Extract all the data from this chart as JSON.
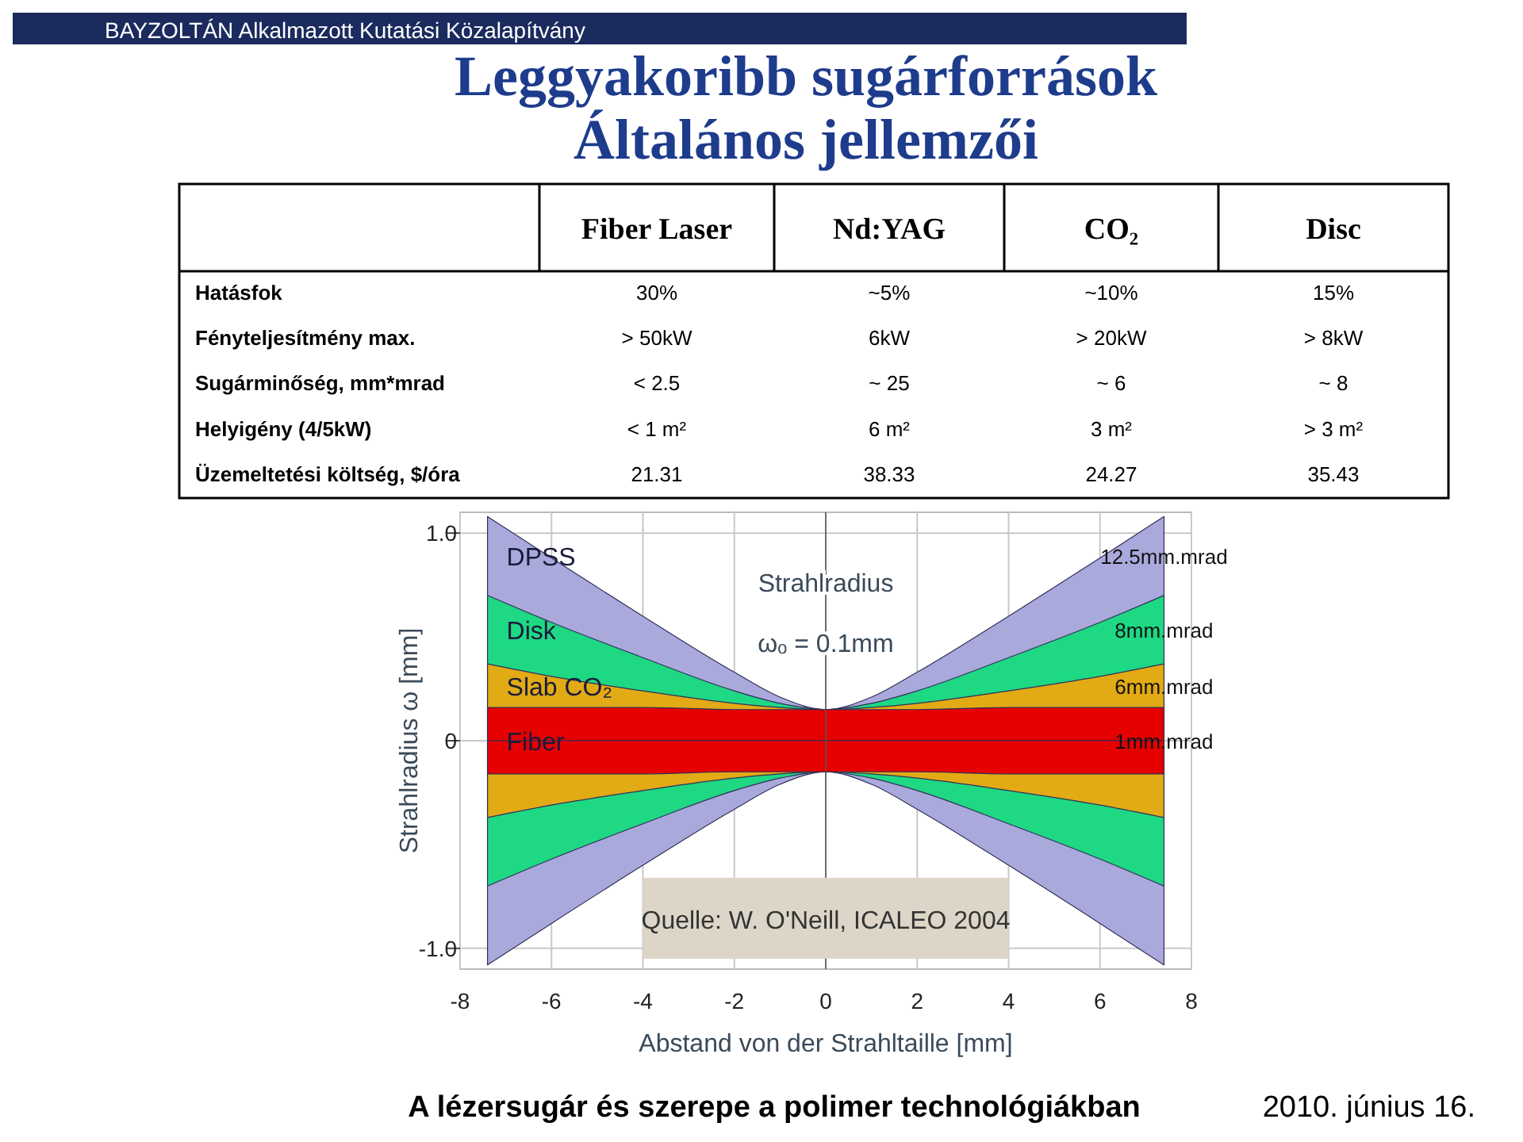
{
  "chart_data": [
    {
      "type": "other",
      "title": "Leggyakoribb sugárforrások\nÁltalános jellemzői",
      "categories": [
        "Fiber Laser",
        "Nd:YAG",
        "CO₂",
        "Disc"
      ],
      "y_categories": [
        "Hatásfok",
        "Fényteljesítmény max.",
        "Sugárminőség, mm*mrad",
        "Helyigény (4/5kW)",
        "Üzemeltetési költség, $/óra"
      ],
      "cell_labels": [
        [
          "30%",
          "~5%",
          "~10%",
          "15%"
        ],
        [
          "> 50kW",
          "6kW",
          "> 20kW",
          "> 8kW"
        ],
        [
          "< 2.5",
          "~ 25",
          "~ 6",
          "~ 8"
        ],
        [
          "< 1 m²",
          "6 m²",
          "3 m²",
          "> 3 m²"
        ],
        [
          "21.31",
          "38.33",
          "24.27",
          "35.43"
        ]
      ],
      "annotations": [
        "BAYZOLTÁN Alkalmazott Kutatási Közalapítvány",
        "A lézersugár és szerepe a polimer technológiákban",
        "2010. június 16."
      ]
    },
    {
      "type": "area",
      "xlabel": "Abstand von der Strahltaille [mm]",
      "ylabel": "Strahlradius ω [mm]",
      "x": [
        -7.4,
        -6,
        -4,
        -2,
        -1,
        0,
        1,
        2,
        4,
        6,
        7.4
      ],
      "xlim": [
        -8,
        8
      ],
      "xticks": [
        -8,
        -6,
        -4,
        -2,
        0,
        2,
        4,
        6,
        8
      ],
      "ylim": [
        -1.1,
        1.1
      ],
      "yticks": [
        {
          "value": -1,
          "label": "-1.0"
        },
        0,
        {
          "value": 1,
          "label": "1.0"
        }
      ],
      "grid": true,
      "series": [
        {
          "name": "DPSS",
          "color": "#a9a9dc",
          "values": [
            1.08,
            0.88,
            0.6,
            0.33,
            0.21,
            0.15,
            0.21,
            0.33,
            0.6,
            0.88,
            1.08
          ]
        },
        {
          "color": "#a9a9dc",
          "values": [
            -1.08,
            -0.88,
            -0.6,
            -0.33,
            -0.21,
            -0.15,
            -0.21,
            -0.33,
            -0.6,
            -0.88,
            -1.08
          ]
        },
        {
          "name": "Disk",
          "color": "#1ed884",
          "values": [
            0.7,
            0.57,
            0.4,
            0.24,
            0.18,
            0.15,
            0.18,
            0.24,
            0.4,
            0.57,
            0.7
          ]
        },
        {
          "color": "#1ed884",
          "values": [
            -0.7,
            -0.57,
            -0.4,
            -0.24,
            -0.18,
            -0.15,
            -0.18,
            -0.24,
            -0.4,
            -0.57,
            -0.7
          ]
        },
        {
          "name": "Slab CO₂",
          "color": "#e2aa14",
          "values": [
            0.37,
            0.31,
            0.24,
            0.18,
            0.16,
            0.15,
            0.16,
            0.18,
            0.24,
            0.31,
            0.37
          ]
        },
        {
          "color": "#e2aa14",
          "values": [
            -0.37,
            -0.31,
            -0.24,
            -0.18,
            -0.16,
            -0.15,
            -0.16,
            -0.18,
            -0.24,
            -0.31,
            -0.37
          ]
        },
        {
          "name": "Fiber",
          "color": "#e60000",
          "values": [
            0.16,
            0.16,
            0.16,
            0.15,
            0.15,
            0.15,
            0.15,
            0.15,
            0.16,
            0.16,
            0.16
          ]
        },
        {
          "color": "#e60000",
          "values": [
            -0.16,
            -0.16,
            -0.16,
            -0.15,
            -0.15,
            -0.15,
            -0.15,
            -0.15,
            -0.16,
            -0.16,
            -0.16
          ]
        }
      ],
      "annotations": [
        "Strahlradius",
        "ωₒ = 0.1mm",
        "Quelle: W. O'Neill, ICALEO 2004",
        "12.5mm.mrad",
        "8mm.mrad",
        "6mm.mrad",
        "1mm.mrad"
      ]
    }
  ]
}
